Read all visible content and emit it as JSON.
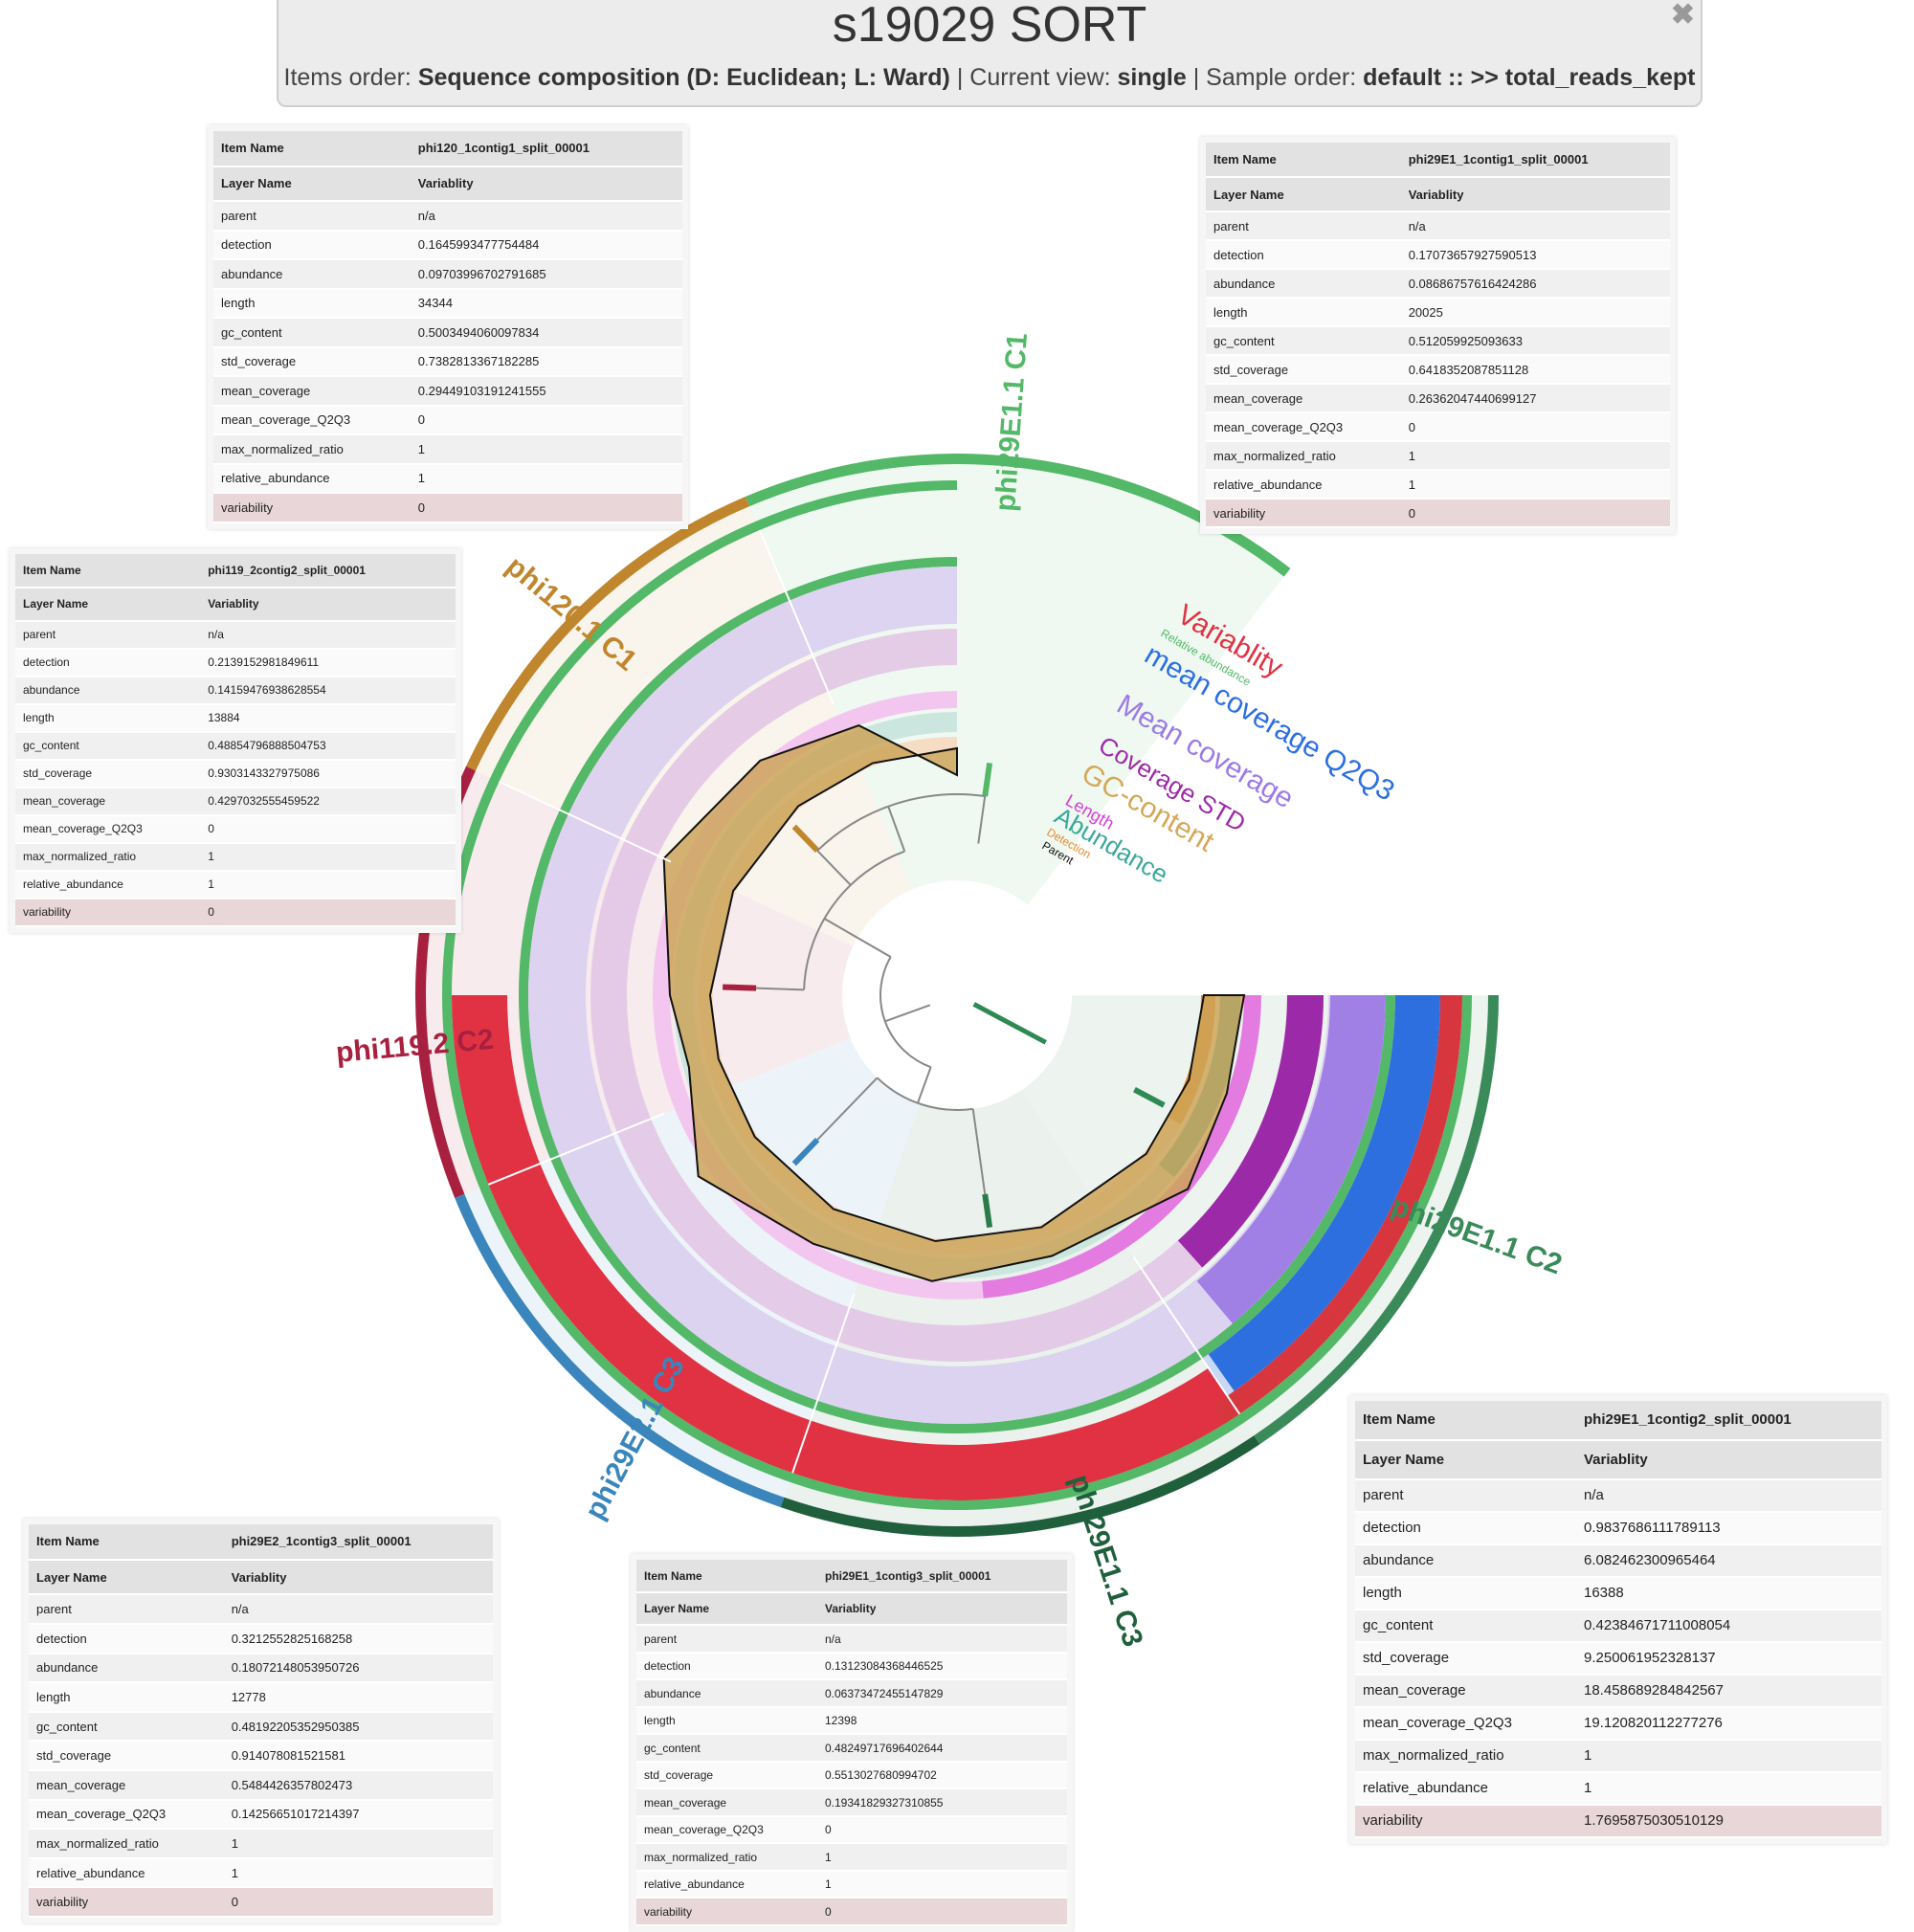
{
  "header": {
    "title": "s19029 SORT",
    "items_order_label": "Items order:",
    "items_order_value": "Sequence composition (D: Euclidean; L: Ward)",
    "current_view_label": "Current view:",
    "current_view_value": "single",
    "sample_order_label": "Sample order:",
    "sample_order_value": "default :: >> total_reads_kept",
    "close_icon": "close-icon",
    "sep": "|"
  },
  "popups": [
    {
      "id": "phi120",
      "item_name_label": "Item Name",
      "item_name": "phi120_1contig1_split_00001",
      "layer_name_label": "Layer Name",
      "layer_name": "Variablity",
      "rows": [
        {
          "k": "parent",
          "v": "n/a"
        },
        {
          "k": "detection",
          "v": "0.1645993477754484"
        },
        {
          "k": "abundance",
          "v": "0.09703996702791685"
        },
        {
          "k": "length",
          "v": "34344"
        },
        {
          "k": "gc_content",
          "v": "0.5003494060097834"
        },
        {
          "k": "std_coverage",
          "v": "0.7382813367182285"
        },
        {
          "k": "mean_coverage",
          "v": "0.29449103191241555"
        },
        {
          "k": "mean_coverage_Q2Q3",
          "v": "0"
        },
        {
          "k": "max_normalized_ratio",
          "v": "1"
        },
        {
          "k": "relative_abundance",
          "v": "1"
        },
        {
          "k": "variability",
          "v": "0"
        }
      ]
    },
    {
      "id": "phi29E1c1",
      "item_name_label": "Item Name",
      "item_name": "phi29E1_1contig1_split_00001",
      "layer_name_label": "Layer Name",
      "layer_name": "Variablity",
      "rows": [
        {
          "k": "parent",
          "v": "n/a"
        },
        {
          "k": "detection",
          "v": "0.17073657927590513"
        },
        {
          "k": "abundance",
          "v": "0.08686757616424286"
        },
        {
          "k": "length",
          "v": "20025"
        },
        {
          "k": "gc_content",
          "v": "0.512059925093633"
        },
        {
          "k": "std_coverage",
          "v": "0.6418352087851128"
        },
        {
          "k": "mean_coverage",
          "v": "0.26362047440699127"
        },
        {
          "k": "mean_coverage_Q2Q3",
          "v": "0"
        },
        {
          "k": "max_normalized_ratio",
          "v": "1"
        },
        {
          "k": "relative_abundance",
          "v": "1"
        },
        {
          "k": "variability",
          "v": "0"
        }
      ]
    },
    {
      "id": "phi119",
      "item_name_label": "Item Name",
      "item_name": "phi119_2contig2_split_00001",
      "layer_name_label": "Layer Name",
      "layer_name": "Variablity",
      "rows": [
        {
          "k": "parent",
          "v": "n/a"
        },
        {
          "k": "detection",
          "v": "0.2139152981849611"
        },
        {
          "k": "abundance",
          "v": "0.14159476938628554"
        },
        {
          "k": "length",
          "v": "13884"
        },
        {
          "k": "gc_content",
          "v": "0.48854796888504753"
        },
        {
          "k": "std_coverage",
          "v": "0.9303143327975086"
        },
        {
          "k": "mean_coverage",
          "v": "0.4297032555459522"
        },
        {
          "k": "mean_coverage_Q2Q3",
          "v": "0"
        },
        {
          "k": "max_normalized_ratio",
          "v": "1"
        },
        {
          "k": "relative_abundance",
          "v": "1"
        },
        {
          "k": "variability",
          "v": "0"
        }
      ]
    },
    {
      "id": "phi29E1c2",
      "item_name_label": "Item Name",
      "item_name": "phi29E1_1contig2_split_00001",
      "layer_name_label": "Layer Name",
      "layer_name": "Variablity",
      "rows": [
        {
          "k": "parent",
          "v": "n/a"
        },
        {
          "k": "detection",
          "v": "0.9837686111789113"
        },
        {
          "k": "abundance",
          "v": "6.082462300965464"
        },
        {
          "k": "length",
          "v": "16388"
        },
        {
          "k": "gc_content",
          "v": "0.42384671711008054"
        },
        {
          "k": "std_coverage",
          "v": "9.250061952328137"
        },
        {
          "k": "mean_coverage",
          "v": "18.458689284842567"
        },
        {
          "k": "mean_coverage_Q2Q3",
          "v": "19.120820112277276"
        },
        {
          "k": "max_normalized_ratio",
          "v": "1"
        },
        {
          "k": "relative_abundance",
          "v": "1"
        },
        {
          "k": "variability",
          "v": "1.7695875030510129"
        }
      ]
    },
    {
      "id": "phi29E2c3",
      "item_name_label": "Item Name",
      "item_name": "phi29E2_1contig3_split_00001",
      "layer_name_label": "Layer Name",
      "layer_name": "Variablity",
      "rows": [
        {
          "k": "parent",
          "v": "n/a"
        },
        {
          "k": "detection",
          "v": "0.3212552825168258"
        },
        {
          "k": "abundance",
          "v": "0.18072148053950726"
        },
        {
          "k": "length",
          "v": "12778"
        },
        {
          "k": "gc_content",
          "v": "0.48192205352950385"
        },
        {
          "k": "std_coverage",
          "v": "0.914078081521581"
        },
        {
          "k": "mean_coverage",
          "v": "0.5484426357802473"
        },
        {
          "k": "mean_coverage_Q2Q3",
          "v": "0.14256651017214397"
        },
        {
          "k": "max_normalized_ratio",
          "v": "1"
        },
        {
          "k": "relative_abundance",
          "v": "1"
        },
        {
          "k": "variability",
          "v": "0"
        }
      ]
    },
    {
      "id": "phi29E1c3",
      "item_name_label": "Item Name",
      "item_name": "phi29E1_1contig3_split_00001",
      "layer_name_label": "Layer Name",
      "layer_name": "Variablity",
      "rows": [
        {
          "k": "parent",
          "v": "n/a"
        },
        {
          "k": "detection",
          "v": "0.13123084368446525"
        },
        {
          "k": "abundance",
          "v": "0.06373472455147829"
        },
        {
          "k": "length",
          "v": "12398"
        },
        {
          "k": "gc_content",
          "v": "0.48249717696402644"
        },
        {
          "k": "std_coverage",
          "v": "0.5513027680994702"
        },
        {
          "k": "mean_coverage",
          "v": "0.19341829327310855"
        },
        {
          "k": "mean_coverage_Q2Q3",
          "v": "0"
        },
        {
          "k": "max_normalized_ratio",
          "v": "1"
        },
        {
          "k": "relative_abundance",
          "v": "1"
        },
        {
          "k": "variability",
          "v": "0"
        }
      ]
    }
  ],
  "bins": [
    {
      "label": "phi29E1.1 C1",
      "color": "#53b867"
    },
    {
      "label": "phi120.1 C1",
      "color": "#c0862d"
    },
    {
      "label": "phi119.2 C2",
      "color": "#a8203f"
    },
    {
      "label": "phi29E2.1 C3",
      "color": "#3a86bc"
    },
    {
      "label": "phi29E1.1 C3",
      "color": "#1f5f3c"
    },
    {
      "label": "phi29E1.1 C2",
      "color": "#3a8a5a"
    }
  ],
  "layers": [
    {
      "label": "Variablity",
      "color": "#e03242"
    },
    {
      "label": "Relative abundance",
      "color": "#53b867"
    },
    {
      "label": "mean coverage Q2Q3",
      "color": "#2c6fe0"
    },
    {
      "label": "Mean coverage",
      "color": "#9c7be6"
    },
    {
      "label": "Coverage STD",
      "color": "#9c2aa8"
    },
    {
      "label": "GC-content",
      "color": "#d3a85a"
    },
    {
      "label": "Length",
      "color": "#d63ed6"
    },
    {
      "label": "Abundance",
      "color": "#3aa89a"
    },
    {
      "label": "Detection",
      "color": "#e68a2c"
    },
    {
      "label": "Parent",
      "color": "#111111"
    }
  ]
}
